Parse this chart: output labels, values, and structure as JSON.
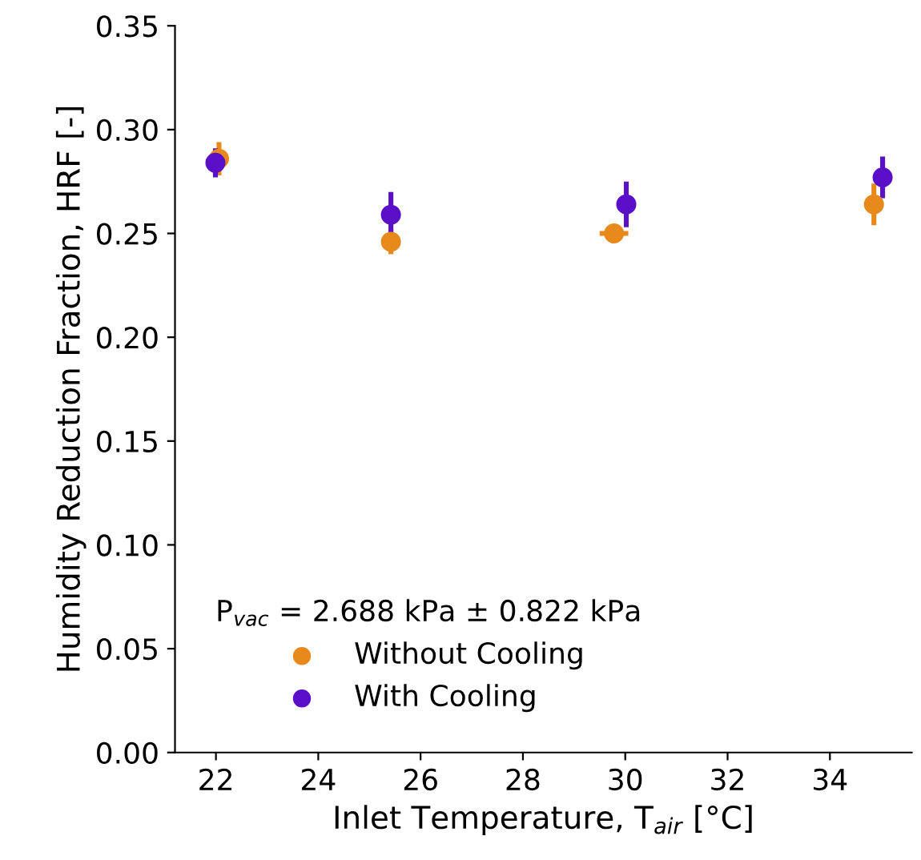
{
  "chart_data": {
    "type": "scatter",
    "xlabel": "Inlet Temperature, T$_{air}$ [°C]",
    "ylabel": "Humidity Reduction Fraction, HRF [-]",
    "legend_title": "P$_{vac}$ = 2.688 kPa ± 0.822 kPa",
    "legend": "bottom left",
    "marker": "circle",
    "grid": false,
    "xlim": [
      21.2,
      35.6
    ],
    "xticks": [
      22,
      24,
      26,
      28,
      30,
      32,
      34
    ],
    "ylim": [
      0,
      0.35
    ],
    "yticks": [
      {
        "value": 0,
        "label": "0.00"
      },
      {
        "value": 0.05,
        "label": "0.05"
      },
      {
        "value": 0.1,
        "label": "0.10"
      },
      {
        "value": 0.15,
        "label": "0.15"
      },
      {
        "value": 0.2,
        "label": "0.20"
      },
      {
        "value": 0.25,
        "label": "0.25"
      },
      {
        "value": 0.3,
        "label": "0.30"
      },
      {
        "value": 0.35,
        "label": "0.35"
      }
    ],
    "series": [
      {
        "name": "Without Cooling",
        "color": "#e8891c",
        "x": [
          22.06,
          25.42,
          29.78,
          34.86
        ],
        "values": [
          0.286,
          0.246,
          0.25,
          0.264
        ],
        "errors": [
          0.008,
          0.006,
          0.002,
          0.01
        ],
        "xerrors": [
          0.1,
          0.05,
          0.28,
          0.05
        ]
      },
      {
        "name": "With Cooling",
        "color": "#5a0fc8",
        "x": [
          21.99,
          25.42,
          30.02,
          35.03
        ],
        "values": [
          0.284,
          0.259,
          0.264,
          0.277
        ],
        "errors": [
          0.007,
          0.011,
          0.011,
          0.01
        ],
        "xerrors": [
          0.05,
          0.05,
          0.05,
          0.05
        ]
      }
    ]
  }
}
